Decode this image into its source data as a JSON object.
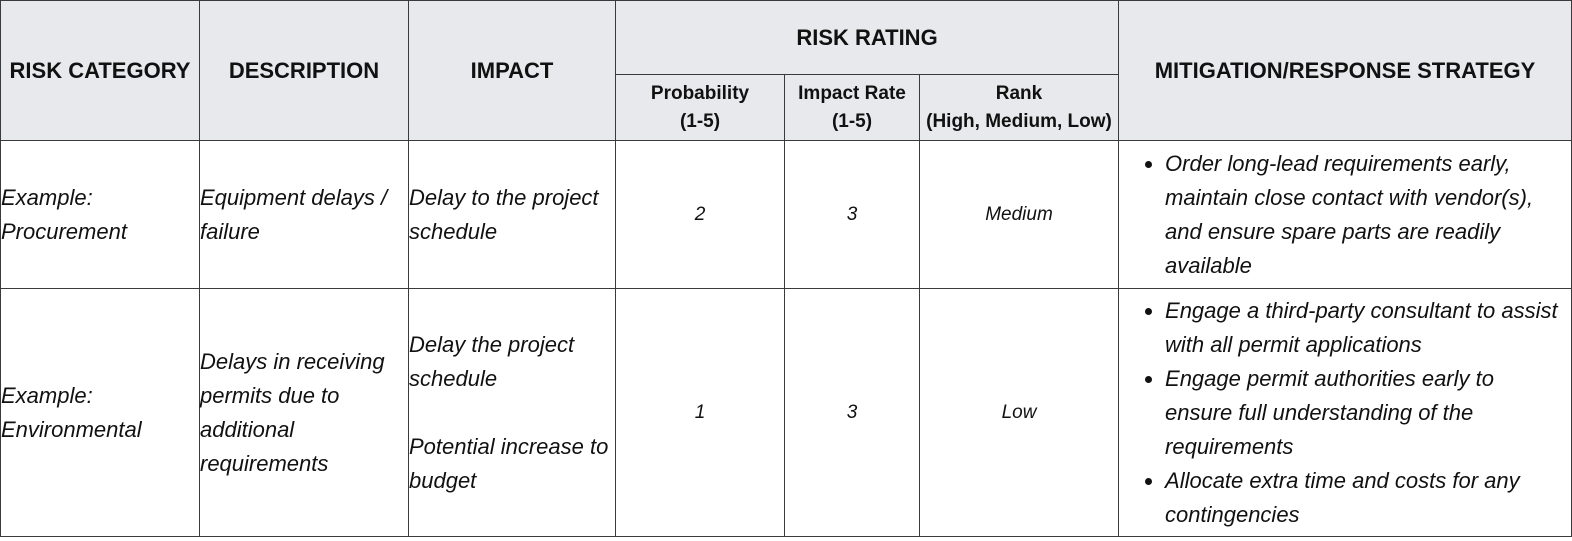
{
  "headers": {
    "risk_category": "RISK CATEGORY",
    "description": "DESCRIPTION",
    "impact": "IMPACT",
    "risk_rating": "RISK RATING",
    "mitigation": "MITIGATION/RESPONSE STRATEGY",
    "probability": "Probability",
    "probability_scale": "(1-5)",
    "impact_rate": "Impact Rate",
    "impact_rate_scale": "(1-5)",
    "rank": "Rank",
    "rank_scale": "(High, Medium, Low)"
  },
  "rows": [
    {
      "category_line1": "Example:",
      "category_line2": "Procurement",
      "description": "Equipment delays / failure",
      "impact": [
        "Delay to the project schedule"
      ],
      "probability": "2",
      "impact_rate": "3",
      "rank": "Medium",
      "mitigation": [
        "Order long-lead requirements early, maintain close contact with vendor(s), and ensure spare parts are readily available"
      ]
    },
    {
      "category_line1": "Example:",
      "category_line2": "Environmental",
      "description": "Delays in receiving permits due to additional requirements",
      "impact": [
        "Delay the project schedule",
        "Potential increase to budget"
      ],
      "probability": "1",
      "impact_rate": "3",
      "rank": "Low",
      "mitigation": [
        "Engage a third-party consultant to assist with all permit applications",
        "Engage permit authorities early to ensure full understanding of the requirements",
        "Allocate extra time and costs for any contingencies"
      ]
    }
  ]
}
